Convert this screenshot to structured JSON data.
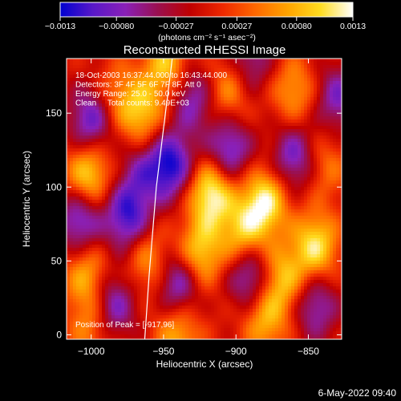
{
  "chart_data": {
    "type": "heatmap",
    "title": "Reconstructed RHESSI Image",
    "xlabel": "Heliocentric X (arcsec)",
    "ylabel": "Heliocentric Y (arcsec)",
    "xlim": [
      -1017,
      -827
    ],
    "ylim": [
      -3,
      187
    ],
    "x_ticks": [
      -1000,
      -950,
      -900,
      -850
    ],
    "x_tick_labels": [
      "−1000",
      "−950",
      "−900",
      "−850"
    ],
    "y_ticks": [
      0,
      50,
      100,
      150
    ],
    "y_tick_labels": [
      "0",
      "50",
      "100",
      "150"
    ],
    "colorbar": {
      "range": [
        -0.0013,
        0.0013
      ],
      "ticks": [
        -0.0013,
        -0.0008,
        -0.00027,
        0.00027,
        0.0008,
        0.0013
      ],
      "tick_labels": [
        "−0.0013",
        "−0.00080",
        "−0.00027",
        "0.00027",
        "0.00080",
        "0.0013"
      ],
      "units": "(photons cm⁻² s⁻¹ asec⁻²)",
      "colors": [
        "#0000d0",
        "#5818c8",
        "#8a20b8",
        "#9a1050",
        "#c00000",
        "#ee2800",
        "#ff6800",
        "#ffa400",
        "#ffdc20",
        "#ffffff"
      ]
    },
    "annotations": [
      "18-Oct-2003 16:37:44.000 to 16:43:44.000",
      "Detectors: 3F 4F 5F 6F 7F 8F, Att 0",
      "Energy Range: 25.0 - 50.0 keV",
      "Clean     Total counts: 9.49E+03"
    ],
    "peak_label": "Position of Peak = [-917,96]",
    "peak": [
      -917,
      96
    ],
    "limb_curve": [
      [
        -963,
        -3
      ],
      [
        -960,
        40
      ],
      [
        -955,
        100
      ],
      [
        -950,
        140
      ],
      [
        -944,
        187
      ]
    ],
    "blobs": [
      {
        "x": -1002,
        "y": 108,
        "v": 0.0011
      },
      {
        "x": -965,
        "y": 150,
        "v": 0.0009
      },
      {
        "x": -948,
        "y": 183,
        "v": 0.0009
      },
      {
        "x": -983,
        "y": 162,
        "v": 0.0005
      },
      {
        "x": -917,
        "y": 96,
        "v": 0.0013
      },
      {
        "x": -880,
        "y": 90,
        "v": 0.0012
      },
      {
        "x": -895,
        "y": 68,
        "v": 0.0009
      },
      {
        "x": -868,
        "y": 38,
        "v": 0.0009
      },
      {
        "x": -845,
        "y": 60,
        "v": 0.0011
      },
      {
        "x": -925,
        "y": 55,
        "v": 0.001
      },
      {
        "x": -1003,
        "y": 40,
        "v": 0.0008
      },
      {
        "x": -960,
        "y": 50,
        "v": 0.0007
      },
      {
        "x": -905,
        "y": 165,
        "v": 0.0007
      },
      {
        "x": -860,
        "y": 165,
        "v": 0.0007
      },
      {
        "x": -1000,
        "y": 5,
        "v": 0.0006
      },
      {
        "x": -940,
        "y": 0,
        "v": 0.0008
      },
      {
        "x": -880,
        "y": 10,
        "v": 0.0008
      },
      {
        "x": -838,
        "y": 115,
        "v": 0.0005
      },
      {
        "x": -1008,
        "y": 78,
        "v": -0.001
      },
      {
        "x": -975,
        "y": 80,
        "v": -0.0011
      },
      {
        "x": -945,
        "y": 115,
        "v": -0.0012
      },
      {
        "x": -905,
        "y": 125,
        "v": -0.001
      },
      {
        "x": -860,
        "y": 120,
        "v": -0.0009
      },
      {
        "x": -940,
        "y": 35,
        "v": -0.001
      },
      {
        "x": -890,
        "y": 40,
        "v": -0.001
      },
      {
        "x": -985,
        "y": 20,
        "v": -0.0009
      },
      {
        "x": -1000,
        "y": 145,
        "v": -0.001
      },
      {
        "x": -930,
        "y": 160,
        "v": -0.0008
      },
      {
        "x": -845,
        "y": 20,
        "v": -0.0008
      },
      {
        "x": -830,
        "y": 160,
        "v": -0.0008
      },
      {
        "x": -965,
        "y": 110,
        "v": -0.0006
      },
      {
        "x": -890,
        "y": 185,
        "v": -0.0007
      }
    ]
  },
  "footer": {
    "date": "6-May-2022 09:40"
  }
}
